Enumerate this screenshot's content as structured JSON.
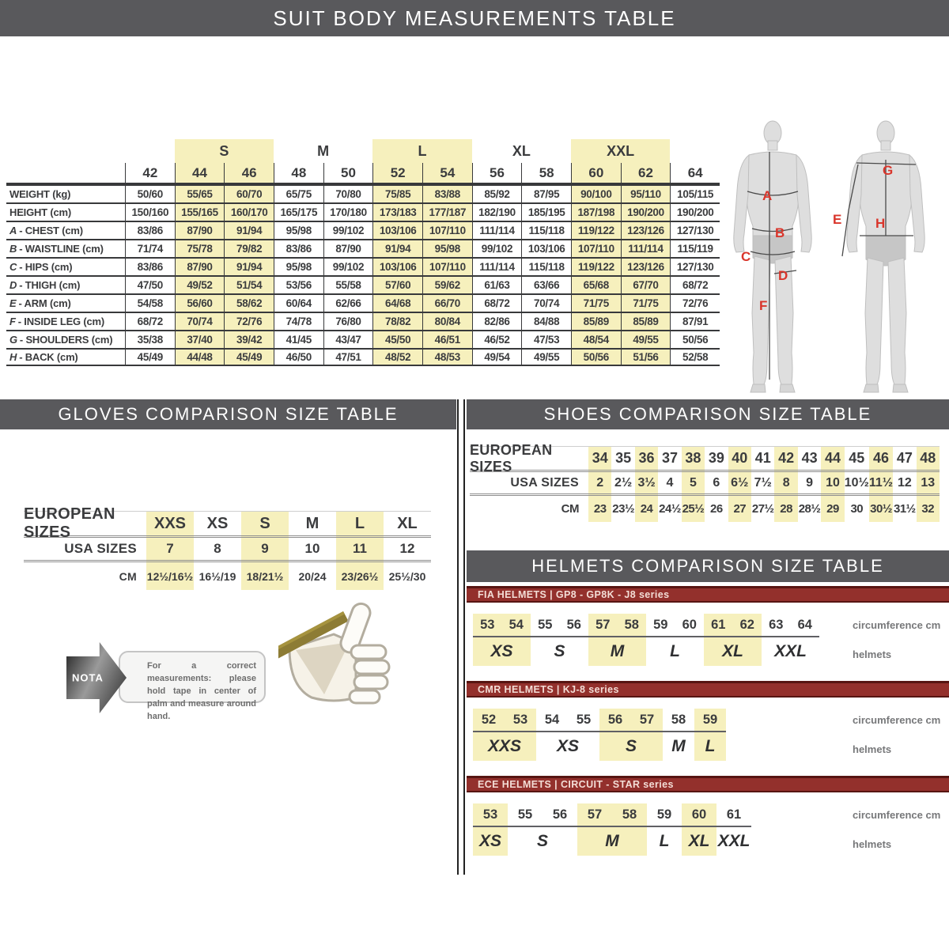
{
  "colors": {
    "bar_gray": "#59595c",
    "highlight_yellow": "#f6f0bd",
    "red_bar": "#93302c",
    "red_bar_border": "#571512",
    "red_bar_text": "#f3ddd6",
    "accent_red": "#d9352b",
    "text_dark": "#3b3c3e",
    "line_dark": "#38393b",
    "muted": "#77787a"
  },
  "suit_section": {
    "title": "SUIT BODY MEASUREMENTS TABLE"
  },
  "suit_table": {
    "group_headers": [
      {
        "label": "S",
        "highlight": true
      },
      {
        "label": "M",
        "highlight": false
      },
      {
        "label": "L",
        "highlight": true
      },
      {
        "label": "XL",
        "highlight": false
      },
      {
        "label": "XXL",
        "highlight": true
      }
    ],
    "sizes": [
      "42",
      "44",
      "46",
      "48",
      "50",
      "52",
      "54",
      "56",
      "58",
      "60",
      "62",
      "64"
    ],
    "highlight_sizes": [
      "44",
      "46",
      "52",
      "54",
      "60",
      "62"
    ],
    "rows": [
      {
        "prefix": "",
        "label": "WEIGHT (kg)",
        "values": [
          "50/60",
          "55/65",
          "60/70",
          "65/75",
          "70/80",
          "75/85",
          "83/88",
          "85/92",
          "87/95",
          "90/100",
          "95/110",
          "105/115"
        ]
      },
      {
        "prefix": "",
        "label": "HEIGHT (cm)",
        "values": [
          "150/160",
          "155/165",
          "160/170",
          "165/175",
          "170/180",
          "173/183",
          "177/187",
          "182/190",
          "185/195",
          "187/198",
          "190/200",
          "190/200"
        ]
      },
      {
        "prefix": "A",
        "label": "CHEST (cm)",
        "values": [
          "83/86",
          "87/90",
          "91/94",
          "95/98",
          "99/102",
          "103/106",
          "107/110",
          "111/114",
          "115/118",
          "119/122",
          "123/126",
          "127/130"
        ]
      },
      {
        "prefix": "B",
        "label": "WAISTLINE (cm)",
        "values": [
          "71/74",
          "75/78",
          "79/82",
          "83/86",
          "87/90",
          "91/94",
          "95/98",
          "99/102",
          "103/106",
          "107/110",
          "111/114",
          "115/119"
        ]
      },
      {
        "prefix": "C",
        "label": "HIPS (cm)",
        "values": [
          "83/86",
          "87/90",
          "91/94",
          "95/98",
          "99/102",
          "103/106",
          "107/110",
          "111/114",
          "115/118",
          "119/122",
          "123/126",
          "127/130"
        ]
      },
      {
        "prefix": "D",
        "label": "THIGH (cm)",
        "values": [
          "47/50",
          "49/52",
          "51/54",
          "53/56",
          "55/58",
          "57/60",
          "59/62",
          "61/63",
          "63/66",
          "65/68",
          "67/70",
          "68/72"
        ]
      },
      {
        "prefix": "E",
        "label": "ARM (cm)",
        "values": [
          "54/58",
          "56/60",
          "58/62",
          "60/64",
          "62/66",
          "64/68",
          "66/70",
          "68/72",
          "70/74",
          "71/75",
          "71/75",
          "72/76"
        ]
      },
      {
        "prefix": "F",
        "label": "INSIDE LEG (cm)",
        "values": [
          "68/72",
          "70/74",
          "72/76",
          "74/78",
          "76/80",
          "78/82",
          "80/84",
          "82/86",
          "84/88",
          "85/89",
          "85/89",
          "87/91"
        ]
      },
      {
        "prefix": "G",
        "label": "SHOULDERS (cm)",
        "values": [
          "35/38",
          "37/40",
          "39/42",
          "41/45",
          "43/47",
          "45/50",
          "46/51",
          "46/52",
          "47/53",
          "48/54",
          "49/55",
          "50/56"
        ]
      },
      {
        "prefix": "H",
        "label": "BACK (cm)",
        "values": [
          "45/49",
          "44/48",
          "45/49",
          "46/50",
          "47/51",
          "48/52",
          "48/53",
          "49/54",
          "49/55",
          "50/56",
          "51/56",
          "52/58"
        ]
      }
    ]
  },
  "figures": {
    "front_labels": [
      "A",
      "B",
      "C",
      "D",
      "F"
    ],
    "back_labels": [
      "G",
      "E",
      "H"
    ]
  },
  "gloves_section": {
    "title": "GLOVES COMPARISON SIZE TABLE",
    "table": {
      "rows": [
        {
          "label": "EUROPEAN SIZES",
          "values": [
            "XXS",
            "XS",
            "S",
            "M",
            "L",
            "XL"
          ]
        },
        {
          "label": "USA SIZES",
          "values": [
            "7",
            "8",
            "9",
            "10",
            "11",
            "12"
          ]
        },
        {
          "label": "CM",
          "values": [
            "12½/16½",
            "16½/19",
            "18/21½",
            "20/24",
            "23/26½",
            "25½/30"
          ]
        }
      ],
      "highlight_cols": [
        0,
        2,
        4
      ]
    },
    "nota": {
      "badge": "NOTA",
      "text": "For a correct measurements: please hold tape in center of palm and measure around hand."
    }
  },
  "shoes_section": {
    "title": "SHOES COMPARISON SIZE TABLE",
    "table": {
      "rows": [
        {
          "label": "EUROPEAN SIZES",
          "values": [
            "34",
            "35",
            "36",
            "37",
            "38",
            "39",
            "40",
            "41",
            "42",
            "43",
            "44",
            "45",
            "46",
            "47",
            "48"
          ]
        },
        {
          "label": "USA SIZES",
          "values": [
            "2",
            "2½",
            "3½",
            "4",
            "5",
            "6",
            "6½",
            "7½",
            "8",
            "9",
            "10",
            "10½",
            "11½",
            "12",
            "13"
          ]
        },
        {
          "label": "CM",
          "values": [
            "23",
            "23½",
            "24",
            "24½",
            "25½",
            "26",
            "27",
            "27½",
            "28",
            "28½",
            "29",
            "30",
            "30½",
            "31½",
            "32"
          ]
        }
      ],
      "highlight_cols": [
        0,
        2,
        4,
        6,
        8,
        10,
        12,
        14
      ]
    }
  },
  "helmets_section": {
    "title": "HELMETS COMPARISON SIZE TABLE",
    "row_label_top": "circumference cm",
    "row_label_bottom": "helmets",
    "tables": [
      {
        "header": "FIA HELMETS | GP8 - GP8K - J8 series",
        "circumferences": [
          "53",
          "54",
          "55",
          "56",
          "57",
          "58",
          "59",
          "60",
          "61",
          "62",
          "63",
          "64"
        ],
        "highlight_cols": [
          0,
          1,
          4,
          5,
          8,
          9
        ],
        "sizes": [
          {
            "label": "XS",
            "span": 2,
            "highlight": true
          },
          {
            "label": "S",
            "span": 2,
            "highlight": false
          },
          {
            "label": "M",
            "span": 2,
            "highlight": true
          },
          {
            "label": "L",
            "span": 2,
            "highlight": false
          },
          {
            "label": "XL",
            "span": 2,
            "highlight": true
          },
          {
            "label": "XXL",
            "span": 2,
            "highlight": false
          }
        ]
      },
      {
        "header": "CMR HELMETS | KJ-8 series",
        "circumferences": [
          "52",
          "53",
          "54",
          "55",
          "56",
          "57",
          "58",
          "59"
        ],
        "highlight_cols": [
          0,
          1,
          4,
          5,
          7
        ],
        "sizes": [
          {
            "label": "XXS",
            "span": 2,
            "highlight": true
          },
          {
            "label": "XS",
            "span": 2,
            "highlight": false
          },
          {
            "label": "S",
            "span": 2,
            "highlight": true
          },
          {
            "label": "M",
            "span": 1,
            "highlight": false
          },
          {
            "label": "L",
            "span": 1,
            "highlight": true
          }
        ]
      },
      {
        "header": "ECE HELMETS | CIRCUIT - STAR series",
        "circumferences": [
          "53",
          "55",
          "56",
          "57",
          "58",
          "59",
          "60",
          "61"
        ],
        "highlight_cols": [
          0,
          3,
          4,
          6
        ],
        "sizes": [
          {
            "label": "XS",
            "span": 1,
            "highlight": true
          },
          {
            "label": "S",
            "span": 2,
            "highlight": false
          },
          {
            "label": "M",
            "span": 2,
            "highlight": true
          },
          {
            "label": "L",
            "span": 1,
            "highlight": false
          },
          {
            "label": "XL",
            "span": 1,
            "highlight": true
          },
          {
            "label": "XXL",
            "span": 1,
            "highlight": false
          }
        ]
      }
    ]
  }
}
